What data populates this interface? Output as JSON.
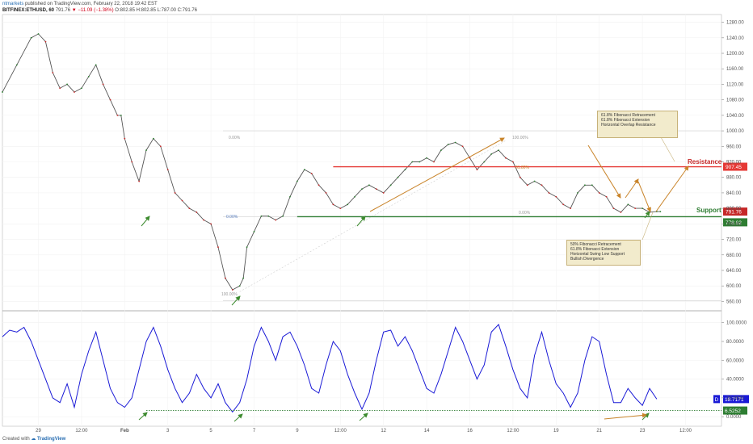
{
  "header": {
    "author": "ntmarkets",
    "published": "published on TradingView.com, February 22, 2018 19:42 EST",
    "symbol": "BITFINEX:ETHUSD, 60",
    "last": "791.76",
    "change": "▼ −11.09 (−1.38%)",
    "o": "O:802.85",
    "h": "H:802.85",
    "l": "L:787.00",
    "c": "C:791.76"
  },
  "footer": {
    "created_with": "Created with",
    "brand": "TradingView"
  },
  "colors": {
    "up": "#2e7d32",
    "down": "#c62828",
    "resistance": "#e53935",
    "support": "#2e7d32",
    "fib": "#cfcfcf",
    "arrow_orange": "#c9842a",
    "arrow_green": "#3d8b2f",
    "osc": "#1a1ad6",
    "note_bg": "#f2ebcc"
  },
  "annotations": {
    "resistance_label": "Resistance",
    "support_label": "Support",
    "note_top": [
      "61.8% Fibonacci Retracement",
      "61.8% Fibonacci Extension",
      "Horizontal Overlap Resistance"
    ],
    "note_bottom": [
      "50% Fibonacci Retracement",
      "61.8% Fibonacci Extension",
      "Horizontal Swing Low Support",
      "Bullish Divergence"
    ],
    "fib_left": [
      "0.00%",
      "0.00%",
      "100.00%"
    ],
    "fib_right": [
      "100.00%",
      "61.80%",
      "0.00%"
    ]
  },
  "chart_data": [
    {
      "type": "line",
      "description_ref": "ETHUSD 60-minute candles (approximated as close path)",
      "x_tick_labels": [
        "29",
        "12:00",
        "Feb",
        "3",
        "5",
        "7",
        "9",
        "12:00",
        "12",
        "14",
        "16",
        "12:00",
        "19",
        "21",
        "23",
        "12:00"
      ],
      "y_ticks": [
        560,
        600,
        640,
        680,
        720,
        760,
        800,
        840,
        880,
        920,
        960,
        1000,
        1040,
        1080,
        1120,
        1160,
        1200,
        1240,
        1280
      ],
      "ylim": [
        540,
        1300
      ],
      "x_range": [
        0,
        100
      ],
      "series": [
        {
          "x": [
            0,
            2,
            4,
            5,
            6,
            7,
            8,
            9,
            10,
            11,
            12,
            13,
            14,
            15,
            16,
            16.5,
            17,
            18,
            19,
            20,
            21,
            22,
            23,
            24,
            25,
            26,
            27,
            28,
            29,
            30,
            31,
            32,
            33,
            33.5,
            34,
            35,
            36,
            37,
            38,
            39,
            40,
            41,
            42,
            43,
            44,
            45,
            46,
            47,
            48,
            49,
            50,
            51,
            52,
            53,
            54,
            55,
            56,
            57,
            58,
            59,
            60,
            61,
            62,
            63,
            64,
            65,
            66,
            67,
            68,
            69,
            70,
            71,
            72,
            73,
            74,
            75,
            76,
            77,
            78,
            79,
            80,
            81,
            82,
            83,
            84,
            85,
            86,
            87,
            88,
            89,
            90,
            91,
            91.5
          ],
          "values": [
            1100,
            1170,
            1240,
            1250,
            1230,
            1150,
            1110,
            1120,
            1100,
            1110,
            1140,
            1170,
            1120,
            1080,
            1040,
            1040,
            980,
            920,
            870,
            950,
            980,
            960,
            900,
            840,
            820,
            800,
            790,
            770,
            760,
            700,
            620,
            590,
            600,
            620,
            700,
            740,
            780,
            780,
            770,
            780,
            830,
            870,
            900,
            890,
            860,
            840,
            810,
            800,
            810,
            830,
            850,
            860,
            850,
            840,
            860,
            880,
            900,
            920,
            920,
            930,
            920,
            950,
            965,
            970,
            960,
            930,
            900,
            920,
            940,
            950,
            930,
            920,
            880,
            860,
            870,
            860,
            840,
            830,
            810,
            800,
            840,
            860,
            860,
            840,
            830,
            800,
            790,
            810,
            800,
            800,
            790,
            791.76,
            791.76
          ]
        }
      ],
      "levels": {
        "resistance": 907.45,
        "support": 778.62
      },
      "price_labels": [
        "907.45",
        "791.76",
        "778.62"
      ]
    },
    {
      "type": "line",
      "description_ref": "Stochastic oscillator",
      "y_ticks": [
        0,
        20,
        40,
        60,
        80,
        100
      ],
      "y_tick_labels": [
        "0.0000",
        "20.0000",
        "40.0000",
        "60.0000",
        "80.0000",
        "100.0000"
      ],
      "ylim": [
        -5,
        110
      ],
      "x_range": [
        0,
        100
      ],
      "series": [
        {
          "x": [
            0,
            1,
            2,
            3,
            4,
            5,
            6,
            7,
            8,
            9,
            10,
            11,
            12,
            13,
            14,
            15,
            16,
            17,
            18,
            19,
            20,
            21,
            22,
            23,
            24,
            25,
            26,
            27,
            28,
            29,
            30,
            31,
            32,
            33,
            34,
            35,
            36,
            37,
            38,
            39,
            40,
            41,
            42,
            43,
            44,
            45,
            46,
            47,
            48,
            49,
            50,
            51,
            52,
            53,
            54,
            55,
            56,
            57,
            58,
            59,
            60,
            61,
            62,
            63,
            64,
            65,
            66,
            67,
            68,
            69,
            70,
            71,
            72,
            73,
            74,
            75,
            76,
            77,
            78,
            79,
            80,
            81,
            82,
            83,
            84,
            85,
            86,
            87,
            88,
            89,
            90,
            91
          ],
          "values": [
            85,
            92,
            90,
            95,
            80,
            60,
            40,
            20,
            15,
            35,
            10,
            45,
            70,
            90,
            60,
            30,
            15,
            10,
            20,
            50,
            80,
            95,
            75,
            50,
            30,
            15,
            25,
            45,
            30,
            20,
            35,
            15,
            5,
            15,
            40,
            75,
            95,
            80,
            60,
            85,
            90,
            75,
            55,
            30,
            25,
            55,
            80,
            70,
            45,
            25,
            8,
            25,
            60,
            90,
            92,
            75,
            85,
            70,
            50,
            30,
            25,
            45,
            70,
            95,
            80,
            60,
            40,
            55,
            90,
            98,
            75,
            50,
            30,
            20,
            65,
            90,
            60,
            35,
            25,
            10,
            25,
            60,
            85,
            80,
            45,
            15,
            15,
            30,
            20,
            12,
            30,
            18.72
          ]
        }
      ],
      "levels": {
        "dotted": 6.5252
      },
      "value_labels": [
        "18.7171",
        "6.5252"
      ],
      "label_marker": "D"
    }
  ]
}
